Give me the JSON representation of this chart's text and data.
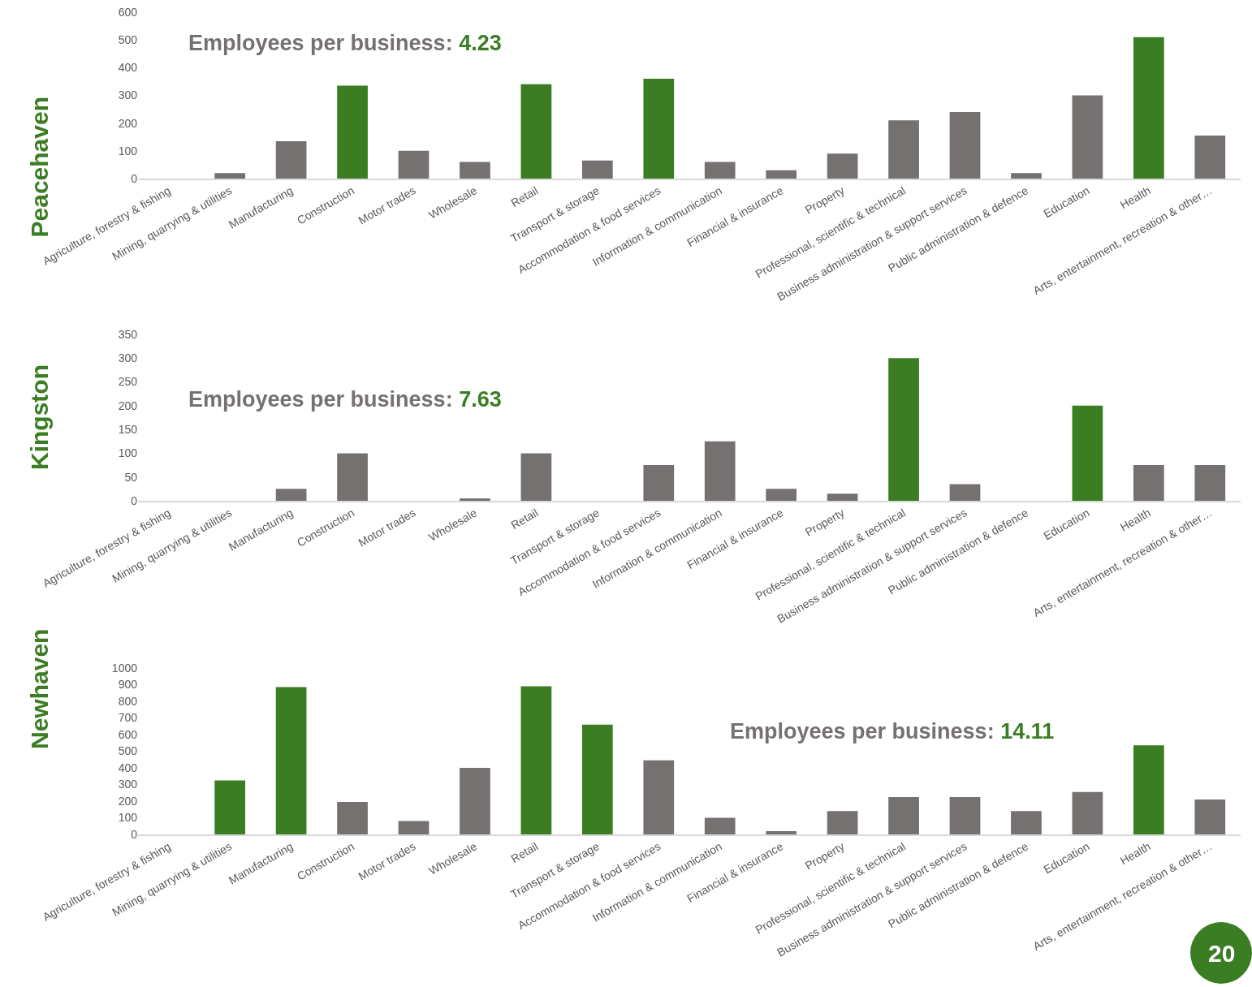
{
  "chart_data": [
    {
      "type": "bar",
      "title": "Peacehaven",
      "annotations": [
        "Employees per business: 4.23"
      ],
      "categories": [
        "Agriculture, forestry & fishing",
        "Mining, quarrying & utilities",
        "Manufacturing",
        "Construction",
        "Motor trades",
        "Wholesale",
        "Retail",
        "Transport & storage",
        "Accommodation & food services",
        "Information & communication",
        "Financial & insurance",
        "Property",
        "Professional, scientific & technical",
        "Business administration & support services",
        "Public administration & defence",
        "Education",
        "Health",
        "Arts, entertainment, recreation & other…"
      ],
      "values": [
        0,
        20,
        135,
        335,
        100,
        60,
        340,
        65,
        360,
        60,
        30,
        90,
        210,
        240,
        20,
        300,
        510,
        155
      ],
      "colors": [
        "#767171",
        "#767171",
        "#767171",
        "#3b7d23",
        "#767171",
        "#767171",
        "#3b7d23",
        "#767171",
        "#3b7d23",
        "#767171",
        "#767171",
        "#767171",
        "#767171",
        "#767171",
        "#767171",
        "#767171",
        "#3b7d23",
        "#767171"
      ],
      "ylim": [
        0,
        600
      ],
      "yticks": [
        0,
        100,
        200,
        300,
        400,
        500,
        600
      ]
    },
    {
      "type": "bar",
      "title": "Kingston",
      "annotations": [
        "Employees per business: 7.63"
      ],
      "categories": [
        "Agriculture, forestry & fishing",
        "Mining, quarrying & utilities",
        "Manufacturing",
        "Construction",
        "Motor trades",
        "Wholesale",
        "Retail",
        "Transport & storage",
        "Accommodation & food services",
        "Information & communication",
        "Financial & insurance",
        "Property",
        "Professional, scientific & technical",
        "Business administration & support services",
        "Public administration & defence",
        "Education",
        "Health",
        "Arts, entertainment, recreation & other…"
      ],
      "values": [
        0,
        0,
        25,
        100,
        0,
        5,
        100,
        0,
        75,
        125,
        25,
        15,
        300,
        35,
        0,
        200,
        75,
        75
      ],
      "colors": [
        "#767171",
        "#767171",
        "#767171",
        "#767171",
        "#767171",
        "#767171",
        "#767171",
        "#767171",
        "#767171",
        "#767171",
        "#767171",
        "#767171",
        "#3b7d23",
        "#767171",
        "#767171",
        "#3b7d23",
        "#767171",
        "#767171"
      ],
      "ylim": [
        0,
        350
      ],
      "yticks": [
        0,
        50,
        100,
        150,
        200,
        250,
        300,
        350
      ]
    },
    {
      "type": "bar",
      "title": "Newhaven",
      "annotations": [
        "Employees per business: 14.11",
        "20"
      ],
      "categories": [
        "Agriculture, forestry & fishing",
        "Mining, quarrying & utilities",
        "Manufacturing",
        "Construction",
        "Motor trades",
        "Wholesale",
        "Retail",
        "Transport & storage",
        "Accommodation & food services",
        "Information & communication",
        "Financial & insurance",
        "Property",
        "Professional, scientific & technical",
        "Business administration & support services",
        "Public administration & defence",
        "Education",
        "Health",
        "Arts, entertainment, recreation & other…"
      ],
      "values": [
        0,
        325,
        885,
        195,
        80,
        400,
        890,
        660,
        445,
        100,
        20,
        140,
        225,
        225,
        140,
        255,
        535,
        210
      ],
      "colors": [
        "#767171",
        "#3b7d23",
        "#3b7d23",
        "#767171",
        "#767171",
        "#767171",
        "#3b7d23",
        "#3b7d23",
        "#767171",
        "#767171",
        "#767171",
        "#767171",
        "#767171",
        "#767171",
        "#767171",
        "#767171",
        "#3b7d23",
        "#767171"
      ],
      "ylim": [
        0,
        1000
      ],
      "yticks": [
        0,
        100,
        200,
        300,
        400,
        500,
        600,
        700,
        800,
        900,
        1000
      ]
    }
  ]
}
